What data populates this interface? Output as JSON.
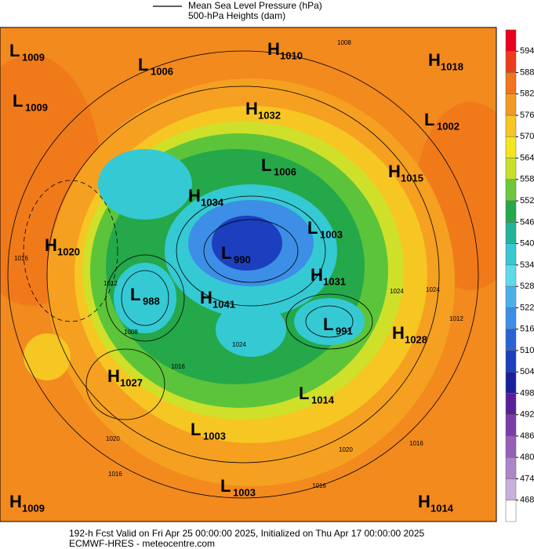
{
  "legend": {
    "items": [
      "Mean Sea Level Pressure (hPa)",
      "500-hPa Heights (dam)"
    ]
  },
  "systems": [
    {
      "type": "L",
      "value": 1009
    },
    {
      "type": "L",
      "value": 1006
    },
    {
      "type": "H",
      "value": 1010
    },
    {
      "type": "H",
      "value": 1018
    },
    {
      "type": "L",
      "value": 1009
    },
    {
      "type": "H",
      "value": 1032
    },
    {
      "type": "L",
      "value": 1002
    },
    {
      "type": "L",
      "value": 1006
    },
    {
      "type": "H",
      "value": 1015
    },
    {
      "type": "H",
      "value": 1034
    },
    {
      "type": "H",
      "value": 1020
    },
    {
      "type": "L",
      "value": 1003
    },
    {
      "type": "L",
      "value": 990
    },
    {
      "type": "L",
      "value": 988
    },
    {
      "type": "H",
      "value": 1041
    },
    {
      "type": "H",
      "value": 1031
    },
    {
      "type": "L",
      "value": 991
    },
    {
      "type": "H",
      "value": 1028
    },
    {
      "type": "H",
      "value": 1027
    },
    {
      "type": "L",
      "value": 1014
    },
    {
      "type": "L",
      "value": 1003
    },
    {
      "type": "L",
      "value": 1003
    },
    {
      "type": "H",
      "value": 1009
    },
    {
      "type": "H",
      "value": 1014
    }
  ],
  "contour_labels": [
    1008,
    1016,
    1012,
    1008,
    1016,
    1024,
    1024,
    1024,
    1012,
    1020,
    1016,
    1020,
    1016,
    1016
  ],
  "colorbar": {
    "ticks": [
      594,
      588,
      582,
      576,
      570,
      564,
      558,
      552,
      546,
      540,
      534,
      528,
      522,
      516,
      510,
      504,
      498,
      492,
      486,
      480,
      474,
      468
    ],
    "colors": [
      "#e8001c",
      "#f03a1c",
      "#f2741e",
      "#f49a22",
      "#f7c524",
      "#f6e41f",
      "#c9e02a",
      "#6cc83a",
      "#27a84a",
      "#22b49a",
      "#35c9d4",
      "#5edbea",
      "#4ab0ea",
      "#3d8ee6",
      "#2a62d4",
      "#1c3fbf",
      "#1a1f9a",
      "#5a1f96",
      "#7a3ca8",
      "#9460b8",
      "#ac86c8",
      "#c8b0dc",
      "#ffffff"
    ]
  },
  "footer": {
    "line1": "192-h Fcst Valid on Fri Apr 25 00:00:00 2025, Initialized on Thu Apr 17 00:00:00 2025",
    "line2": "ECMWF-HRES  - meteocentre.com"
  }
}
